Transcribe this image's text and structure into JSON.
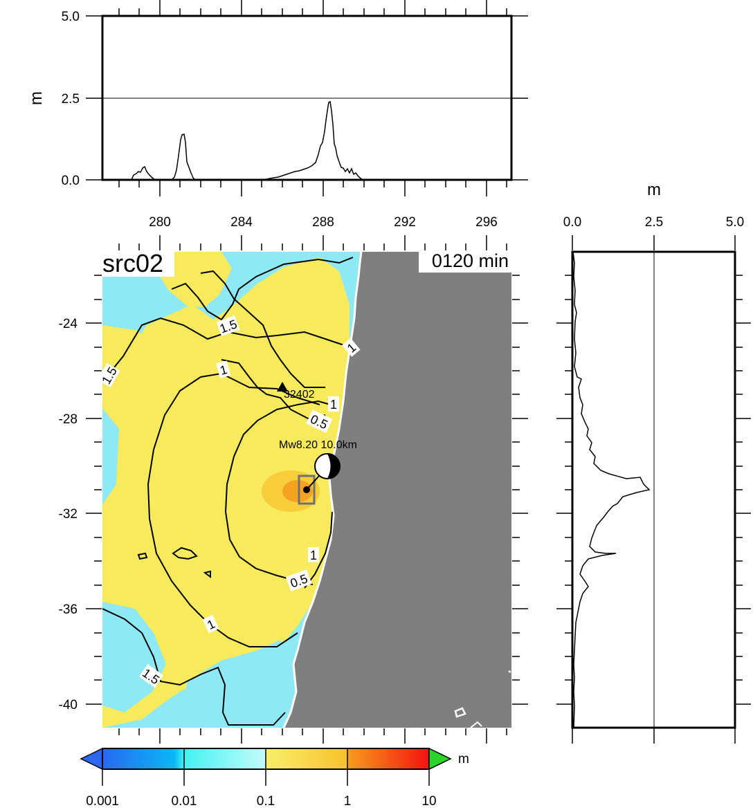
{
  "map": {
    "title": "src02",
    "time_label": "0120 min",
    "station_label": "32402",
    "event_label": "Mw8.20 10.0km",
    "lat_ticks": [
      "-24",
      "-28",
      "-32",
      "-36",
      "-40"
    ],
    "lon_ticks": [
      "280",
      "284",
      "288",
      "292",
      "296"
    ],
    "contour_labels": [
      "1.5",
      "1.5",
      "1",
      "1",
      "0.5",
      "1",
      "0.5",
      "1",
      "1.5"
    ],
    "colors": {
      "land": "#7f7f7f",
      "low": "#8fe9f4",
      "mid": "#f7ea5c",
      "high": "#f39a1f"
    }
  },
  "top_profile": {
    "ylabel": "m",
    "y_ticks": [
      "5.0",
      "2.5",
      "0.0"
    ],
    "profile_values": [
      0.0,
      0.1,
      0.35,
      0.05,
      0.0,
      0.0,
      1.35,
      0.15,
      0.0,
      0.0,
      0.0,
      0.0,
      0.0,
      0.0,
      0.0,
      0.05,
      0.1,
      0.15,
      0.25,
      0.3,
      0.45,
      0.75,
      1.1,
      2.35,
      1.2,
      0.3,
      0.15,
      0.0,
      0.0
    ]
  },
  "side_profile": {
    "xlabel": "m",
    "x_ticks": [
      "0.0",
      "2.5",
      "5.0"
    ],
    "profile_values": [
      0.0,
      0.05,
      0.02,
      0.1,
      0.05,
      0.15,
      0.25,
      0.4,
      0.6,
      0.95,
      1.3,
      1.7,
      2.3,
      1.25,
      0.8,
      1.0,
      0.45,
      0.2,
      0.08,
      0.04,
      0.02,
      0.0
    ]
  },
  "colorbar": {
    "unit": "m",
    "ticks": [
      "0.001",
      "0.01",
      "0.1",
      "1",
      "10"
    ],
    "colors": [
      "#2a68f2",
      "#43f2f2",
      "#f7ea5c",
      "#f78a16",
      "#f32a12"
    ]
  }
}
